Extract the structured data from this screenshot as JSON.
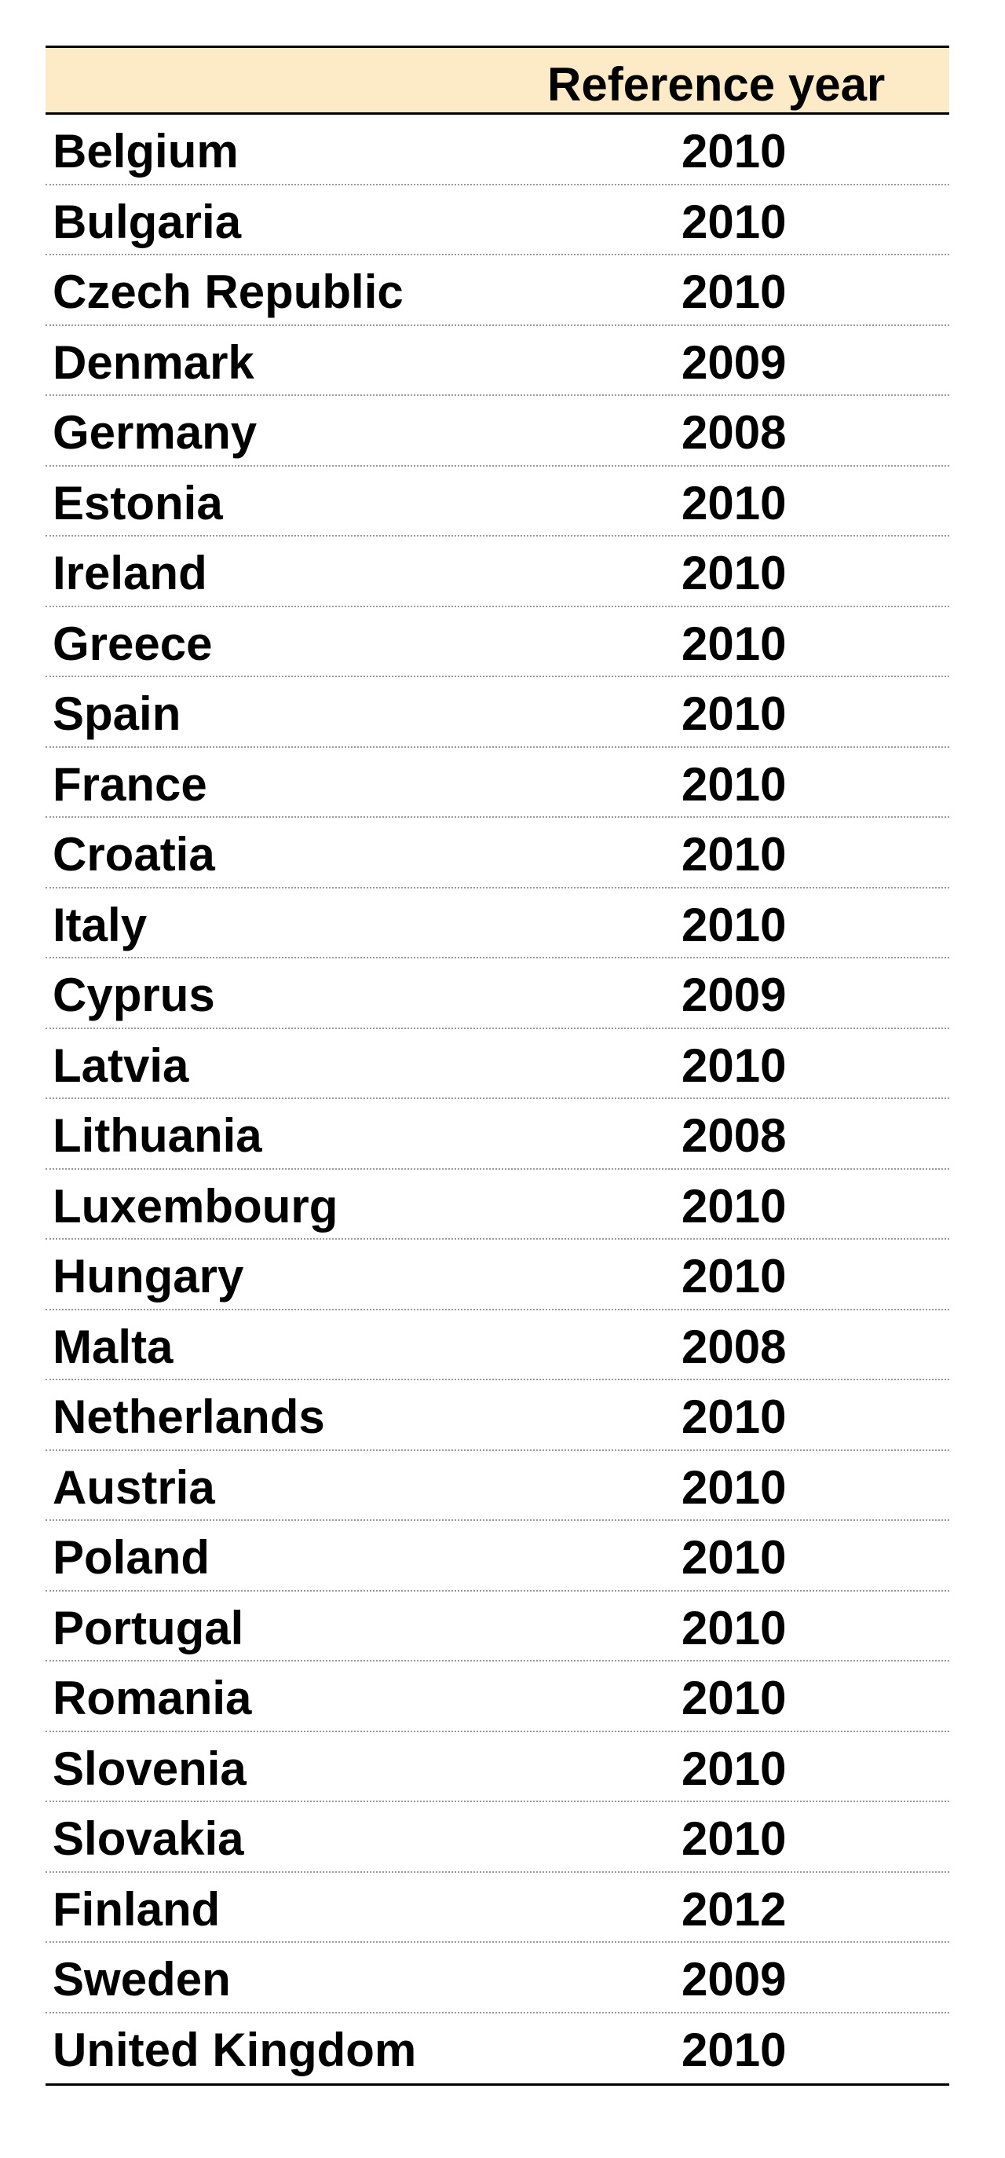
{
  "table": {
    "header": {
      "country": "",
      "reference_year": "Reference year"
    },
    "rows": [
      {
        "country": "Belgium",
        "year": "2010"
      },
      {
        "country": "Bulgaria",
        "year": "2010"
      },
      {
        "country": "Czech Republic",
        "year": "2010"
      },
      {
        "country": "Denmark",
        "year": "2009"
      },
      {
        "country": "Germany",
        "year": "2008"
      },
      {
        "country": "Estonia",
        "year": "2010"
      },
      {
        "country": "Ireland",
        "year": "2010"
      },
      {
        "country": "Greece",
        "year": "2010"
      },
      {
        "country": "Spain",
        "year": "2010"
      },
      {
        "country": "France",
        "year": "2010"
      },
      {
        "country": "Croatia",
        "year": "2010"
      },
      {
        "country": "Italy",
        "year": "2010"
      },
      {
        "country": "Cyprus",
        "year": "2009"
      },
      {
        "country": "Latvia",
        "year": "2010"
      },
      {
        "country": "Lithuania",
        "year": "2008"
      },
      {
        "country": "Luxembourg",
        "year": "2010"
      },
      {
        "country": "Hungary",
        "year": "2010"
      },
      {
        "country": "Malta",
        "year": "2008"
      },
      {
        "country": "Netherlands",
        "year": "2010"
      },
      {
        "country": "Austria",
        "year": "2010"
      },
      {
        "country": "Poland",
        "year": "2010"
      },
      {
        "country": "Portugal",
        "year": "2010"
      },
      {
        "country": "Romania",
        "year": "2010"
      },
      {
        "country": "Slovenia",
        "year": "2010"
      },
      {
        "country": "Slovakia",
        "year": "2010"
      },
      {
        "country": "Finland",
        "year": "2012"
      },
      {
        "country": "Sweden",
        "year": "2009"
      },
      {
        "country": "United Kingdom",
        "year": "2010"
      }
    ]
  },
  "colors": {
    "header_background": "#fdebc8",
    "rule": "#000000",
    "row_separator": "#9a9a9a"
  }
}
